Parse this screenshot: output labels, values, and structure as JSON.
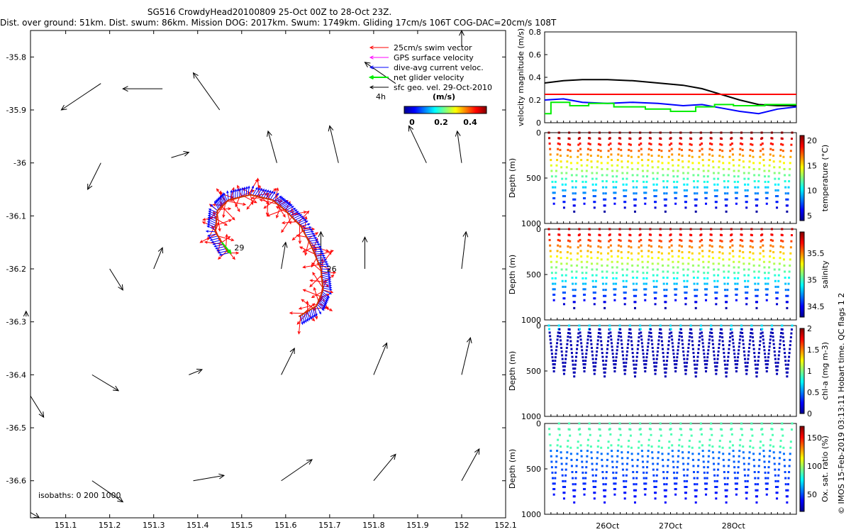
{
  "header": {
    "line1": "SG516 CrowdyHead20100809 25-Oct 00Z to 28-Oct 23Z.",
    "line2": "Dist. over ground: 51km. Dist. swum: 86km. Mission DOG: 2017km. Swum: 1749km. Gliding 17cm/s 106T COG-DAC=20cm/s 108T"
  },
  "side_credit": "© IMOS 15-Feb-2019 03:13:11 Hobart time. QC flags 1  2",
  "colors": {
    "swim": "#ff0000",
    "gps": "#ff00ff",
    "dac": "#0000ff",
    "net": "#00ee00",
    "geo": "#000000",
    "track": "#ff6600"
  },
  "chart_data": [
    {
      "type": "scatter",
      "name": "map",
      "xlim": [
        151.02,
        152.1
      ],
      "ylim": [
        -36.67,
        -35.75
      ],
      "xticks": [
        151.1,
        151.2,
        151.3,
        151.4,
        151.5,
        151.6,
        151.7,
        151.8,
        151.9,
        152,
        152.1
      ],
      "yticks": [
        -35.8,
        -35.9,
        -36,
        -36.1,
        -36.2,
        -36.3,
        -36.4,
        -36.5,
        -36.6
      ],
      "ytick_labels": [
        "-35.8",
        "-35.9",
        "-36",
        "-36.1",
        "-36.2",
        "-36.3",
        "-36.4",
        "-36.5",
        "-36.6"
      ],
      "legend": {
        "entries": [
          "25cm/s swim vector",
          "GPS surface velocity",
          "dive-avg current veloc.",
          "net glider velocity",
          "sfc geo. vel. 29-Oct-2010"
        ],
        "time_label": "4h",
        "colorbar_title": "(m/s)",
        "colorbar_ticks": [
          "0",
          "0.2",
          "0.4"
        ]
      },
      "isobath_label": "isobaths: 0   200  1000",
      "track_labels": [
        "29",
        "26"
      ],
      "geo_vectors": [
        [
          151.18,
          -35.85,
          151.09,
          -35.9
        ],
        [
          151.32,
          -35.86,
          151.23,
          -35.86
        ],
        [
          151.45,
          -35.9,
          151.39,
          -35.83
        ],
        [
          151.85,
          -35.85,
          151.78,
          -35.81
        ],
        [
          152,
          -35.78,
          152,
          -35.75
        ],
        [
          151.18,
          -36.0,
          151.15,
          -36.05
        ],
        [
          151.34,
          -35.99,
          151.38,
          -35.98
        ],
        [
          151.58,
          -36.0,
          151.56,
          -35.94
        ],
        [
          151.72,
          -36.0,
          151.7,
          -35.93
        ],
        [
          151.92,
          -36.0,
          151.88,
          -35.93
        ],
        [
          152,
          -36.0,
          151.99,
          -35.94
        ],
        [
          151.3,
          -36.2,
          151.32,
          -36.16
        ],
        [
          151.78,
          -36.2,
          151.78,
          -36.14
        ],
        [
          152,
          -36.2,
          152.01,
          -36.13
        ],
        [
          151.68,
          -36.2,
          151.68,
          -36.13
        ],
        [
          151.2,
          -36.2,
          151.23,
          -36.24
        ],
        [
          151.59,
          -36.2,
          151.6,
          -36.15
        ],
        [
          151.38,
          -36.4,
          151.41,
          -36.39
        ],
        [
          151.59,
          -36.4,
          151.62,
          -36.35
        ],
        [
          151.8,
          -36.4,
          151.83,
          -36.34
        ],
        [
          152.0,
          -36.4,
          152.02,
          -36.33
        ],
        [
          151.16,
          -36.4,
          151.22,
          -36.43
        ],
        [
          151.02,
          -36.44,
          151.05,
          -36.48
        ],
        [
          151.39,
          -36.6,
          151.46,
          -36.59
        ],
        [
          151.59,
          -36.6,
          151.66,
          -36.56
        ],
        [
          151.8,
          -36.6,
          151.85,
          -36.55
        ],
        [
          152.0,
          -36.6,
          152.04,
          -36.54
        ],
        [
          151.16,
          -36.6,
          151.23,
          -36.64
        ],
        [
          151.02,
          -36.66,
          151.04,
          -36.67
        ],
        [
          151.01,
          -36.29,
          151.01,
          -36.28
        ]
      ],
      "track": [
        [
          151.47,
          -36.17
        ],
        [
          151.44,
          -36.13
        ],
        [
          151.445,
          -36.09
        ],
        [
          151.47,
          -36.07
        ],
        [
          151.52,
          -36.06
        ],
        [
          151.57,
          -36.07
        ],
        [
          151.6,
          -36.09
        ],
        [
          151.635,
          -36.12
        ],
        [
          151.66,
          -36.16
        ],
        [
          151.68,
          -36.2
        ],
        [
          151.685,
          -36.24
        ],
        [
          151.67,
          -36.27
        ],
        [
          151.63,
          -36.29
        ]
      ]
    },
    {
      "type": "line",
      "name": "velocity",
      "ylabel": "velocity magnitude (m/s)",
      "ylim": [
        0,
        0.8
      ],
      "yticks": [
        0,
        0.2,
        0.4,
        0.6,
        0.8
      ],
      "xlim": [
        0,
        4
      ],
      "series": [
        {
          "color": "#000000",
          "x": [
            0,
            0.3,
            0.6,
            1.0,
            1.4,
            1.8,
            2.2,
            2.5,
            2.8,
            3.1,
            3.4,
            3.7,
            4.0
          ],
          "y": [
            0.35,
            0.37,
            0.38,
            0.38,
            0.37,
            0.35,
            0.33,
            0.3,
            0.25,
            0.2,
            0.16,
            0.15,
            0.15
          ]
        },
        {
          "color": "#0000ff",
          "x": [
            0,
            0.3,
            0.6,
            1.0,
            1.4,
            1.8,
            2.2,
            2.5,
            2.8,
            3.1,
            3.4,
            3.7,
            4.0
          ],
          "y": [
            0.2,
            0.21,
            0.18,
            0.17,
            0.18,
            0.17,
            0.15,
            0.16,
            0.13,
            0.1,
            0.08,
            0.12,
            0.14
          ]
        },
        {
          "color": "#ff0000",
          "x": [
            0,
            4.0
          ],
          "y": [
            0.25,
            0.25
          ]
        },
        {
          "color": "#00ee00",
          "x": [
            0,
            0.1,
            0.1,
            0.4,
            0.4,
            0.7,
            0.7,
            1.1,
            1.1,
            1.6,
            1.6,
            2.0,
            2.0,
            2.4,
            2.4,
            2.7,
            2.7,
            3.0,
            3.0,
            3.5,
            3.5,
            4.0
          ],
          "y": [
            0.08,
            0.08,
            0.18,
            0.18,
            0.15,
            0.15,
            0.17,
            0.17,
            0.14,
            0.14,
            0.12,
            0.12,
            0.1,
            0.1,
            0.14,
            0.14,
            0.16,
            0.16,
            0.15,
            0.15,
            0.16,
            0.16
          ]
        }
      ]
    },
    {
      "type": "scatter",
      "name": "temperature",
      "ylabel": "Depth (m)",
      "ylim": [
        1000,
        0
      ],
      "yticks": [
        0,
        500,
        1000
      ],
      "colorbar_label": "temperature (°C)",
      "clim": [
        4,
        21
      ],
      "colorbar_ticks": [
        5,
        10,
        15,
        20
      ],
      "max_depth": 870
    },
    {
      "type": "scatter",
      "name": "salinity",
      "ylabel": "Depth (m)",
      "ylim": [
        1000,
        0
      ],
      "yticks": [
        0,
        500,
        1000
      ],
      "colorbar_label": "salinity",
      "clim": [
        34.3,
        35.9
      ],
      "colorbar_ticks": [
        34.5,
        35,
        35.5
      ],
      "max_depth": 870
    },
    {
      "type": "scatter",
      "name": "chl-a",
      "ylabel": "Depth (m)",
      "ylim": [
        1000,
        0
      ],
      "yticks": [
        0,
        500,
        1000
      ],
      "colorbar_label": "chl-a (mg m-3)",
      "clim": [
        0,
        2
      ],
      "colorbar_ticks": [
        0,
        0.5,
        1,
        1.5,
        2
      ],
      "max_depth": 560
    },
    {
      "type": "scatter",
      "name": "oxygen",
      "ylabel": "Depth (m)",
      "ylim": [
        1000,
        0
      ],
      "yticks": [
        0,
        500,
        1000
      ],
      "colorbar_label": "Ox. sat. ratio (%)",
      "clim": [
        20,
        170
      ],
      "colorbar_ticks": [
        50,
        100,
        150
      ],
      "max_depth": 870
    },
    {
      "type": "line",
      "name": "time_axis",
      "xticks_labels": [
        "26Oct",
        "27Oct",
        "28Oct"
      ],
      "xticks": [
        1,
        2,
        3
      ]
    }
  ]
}
